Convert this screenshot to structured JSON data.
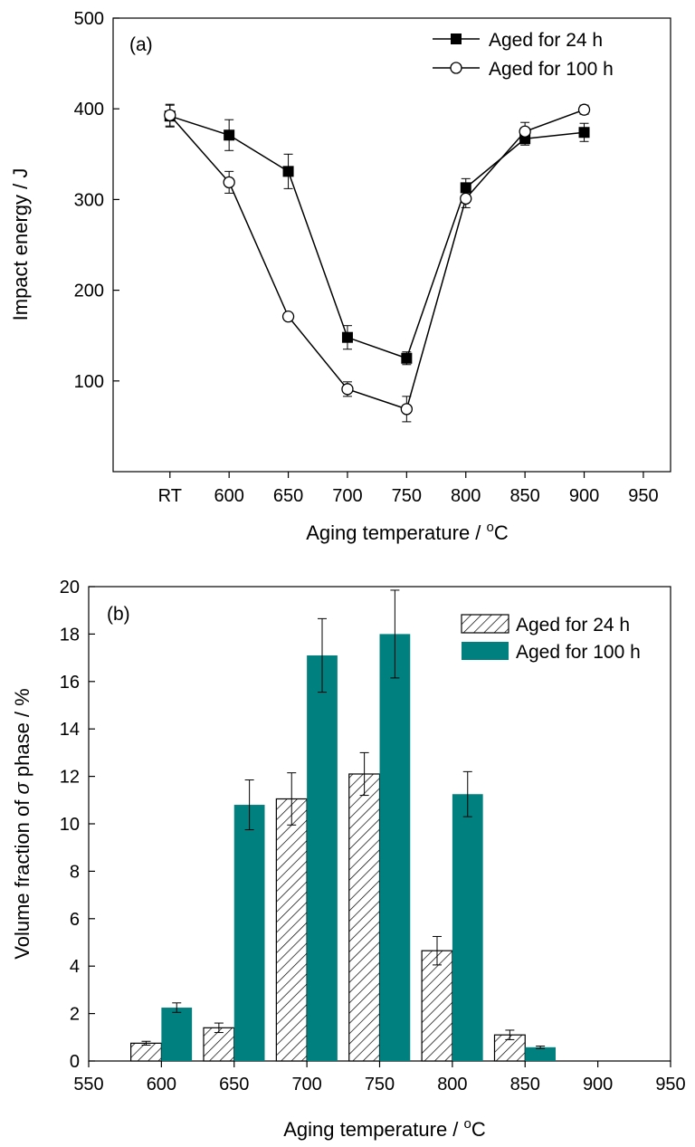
{
  "colors": {
    "teal": "#00807f",
    "axis": "#000000"
  },
  "chart_data": [
    {
      "type": "line",
      "panel_label": "(a)",
      "xlabel_main": "Aging temperature / ",
      "xlabel_sup": "o",
      "xlabel_unit": "C",
      "ylabel": "Impact energy / J",
      "x_ticks": [
        {
          "label": "RT",
          "value": 550
        },
        {
          "label": "600",
          "value": 600
        },
        {
          "label": "650",
          "value": 650
        },
        {
          "label": "700",
          "value": 700
        },
        {
          "label": "750",
          "value": 750
        },
        {
          "label": "800",
          "value": 800
        },
        {
          "label": "850",
          "value": 850
        },
        {
          "label": "900",
          "value": 900
        },
        {
          "label": "950",
          "value": 950
        }
      ],
      "xlim": [
        502,
        973
      ],
      "ylim": [
        0,
        500
      ],
      "y_ticks": [
        100,
        200,
        300,
        400,
        500
      ],
      "legend_placement": "top-right",
      "series": [
        {
          "name": "Aged for 24 h",
          "marker": "filled-square",
          "x": [
            550,
            600,
            650,
            700,
            750,
            800,
            850,
            900
          ],
          "y": [
            392,
            371,
            331,
            148,
            125,
            313,
            367,
            374
          ],
          "err": [
            12,
            17,
            19,
            13,
            7,
            10,
            7,
            10
          ]
        },
        {
          "name": "Aged for 100 h",
          "marker": "open-circle",
          "x": [
            550,
            600,
            650,
            700,
            750,
            800,
            850,
            900
          ],
          "y": [
            393,
            319,
            171,
            91,
            69,
            301,
            375,
            399
          ],
          "err": [
            12,
            12,
            4,
            8,
            14,
            10,
            10,
            5
          ]
        }
      ]
    },
    {
      "type": "bar",
      "panel_label": "(b)",
      "xlabel_main": "Aging temperature / ",
      "xlabel_sup": "o",
      "xlabel_unit": "C",
      "ylabel_main": "Volume fraction of ",
      "ylabel_sym": "σ",
      "ylabel_tail": " phase / %",
      "x_ticks": [
        550,
        600,
        650,
        700,
        750,
        800,
        850,
        900,
        950
      ],
      "xlim": [
        550,
        950
      ],
      "ylim": [
        0,
        20
      ],
      "y_ticks": [
        0,
        2,
        4,
        6,
        8,
        10,
        12,
        14,
        16,
        18,
        20
      ],
      "legend_placement": "top-right",
      "categories": [
        600,
        650,
        700,
        750,
        800,
        850
      ],
      "series": [
        {
          "name": "Aged for 24 h",
          "style": "hatched",
          "values": [
            0.75,
            1.4,
            11.05,
            12.1,
            4.65,
            1.1
          ],
          "err": [
            0.08,
            0.2,
            1.1,
            0.9,
            0.6,
            0.2
          ]
        },
        {
          "name": "Aged for 100 h",
          "style": "solid-teal",
          "values": [
            2.25,
            10.8,
            17.1,
            18.0,
            11.25,
            0.58
          ],
          "err": [
            0.2,
            1.05,
            1.55,
            1.85,
            0.95,
            0.05
          ]
        }
      ]
    }
  ]
}
